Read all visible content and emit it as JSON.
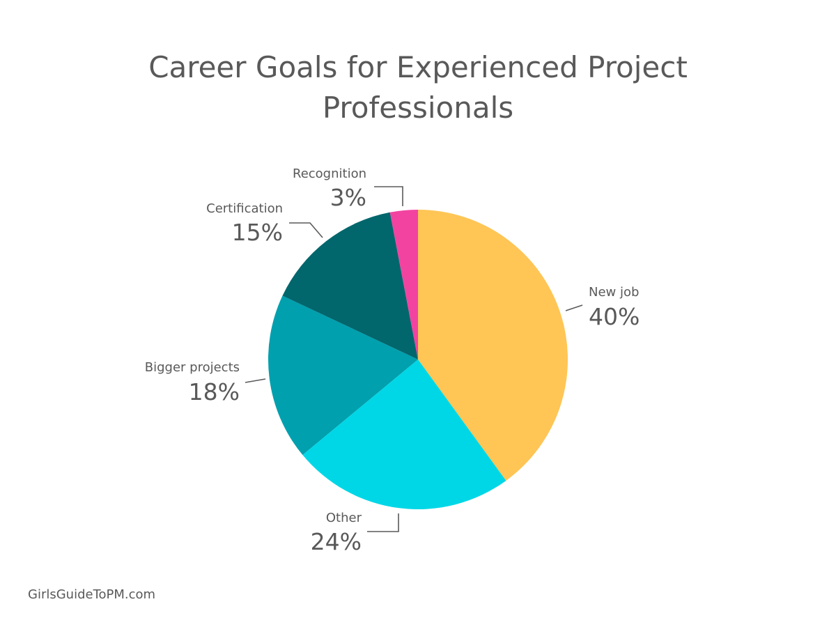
{
  "title": {
    "line1": "Career Goals for Experienced Project",
    "line2": "Professionals"
  },
  "source": "GirlsGuideToPM.com",
  "chart_data": {
    "type": "pie",
    "title": "Career Goals for Experienced Project Professionals",
    "start_position": "12 o'clock, clockwise",
    "legend": "none (slice labels with leader lines)",
    "slices": [
      {
        "name": "New job",
        "value": 40,
        "label": "40%",
        "color": "#FFC555"
      },
      {
        "name": "Other",
        "value": 24,
        "label": "24%",
        "color": "#00D7E6"
      },
      {
        "name": "Bigger projects",
        "value": 18,
        "label": "18%",
        "color": "#00A0AE"
      },
      {
        "name": "Certification",
        "value": 15,
        "label": "15%",
        "color": "#02666D"
      },
      {
        "name": "Recognition",
        "value": 3,
        "label": "3%",
        "color": "#F243A0"
      }
    ]
  }
}
